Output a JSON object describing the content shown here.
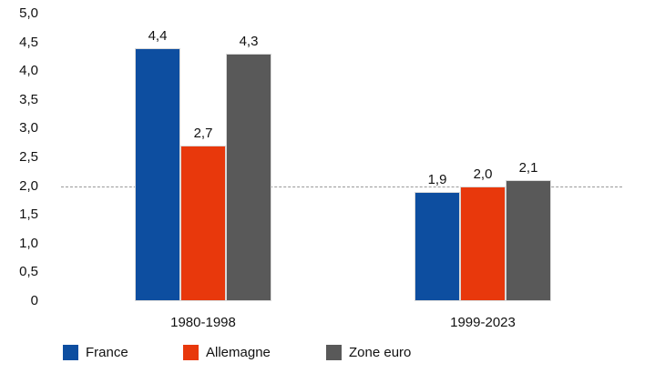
{
  "chart_data": {
    "type": "bar",
    "title": "",
    "categories": [
      "1980-1998",
      "1999-2023"
    ],
    "series": [
      {
        "name": "France",
        "color": "#0d4ea0",
        "values": [
          4.4,
          1.9
        ],
        "labels": [
          "4,4",
          "1,9"
        ]
      },
      {
        "name": "Allemagne",
        "color": "#e8380c",
        "values": [
          2.7,
          2.0
        ],
        "labels": [
          "2,7",
          "2,0"
        ]
      },
      {
        "name": "Zone euro",
        "color": "#595959",
        "values": [
          4.3,
          2.1
        ],
        "labels": [
          "4,3",
          "2,1"
        ]
      }
    ],
    "y_axis": {
      "min": 0,
      "max": 5,
      "step": 0.5,
      "tick_labels": [
        "5,0",
        "4,5",
        "4,0",
        "3,5",
        "3,0",
        "2,5",
        "2,0",
        "1,5",
        "1,0",
        "0,5",
        "0"
      ],
      "grid": false
    },
    "reference_line": {
      "value": 2.0,
      "style": "dashed",
      "color": "#999999"
    },
    "legend": {
      "position": "bottom",
      "entries": [
        {
          "label": "France",
          "color": "#0d4ea0"
        },
        {
          "label": "Allemagne",
          "color": "#e8380c"
        },
        {
          "label": "Zone euro",
          "color": "#595959"
        }
      ]
    },
    "decimal_separator": ","
  }
}
